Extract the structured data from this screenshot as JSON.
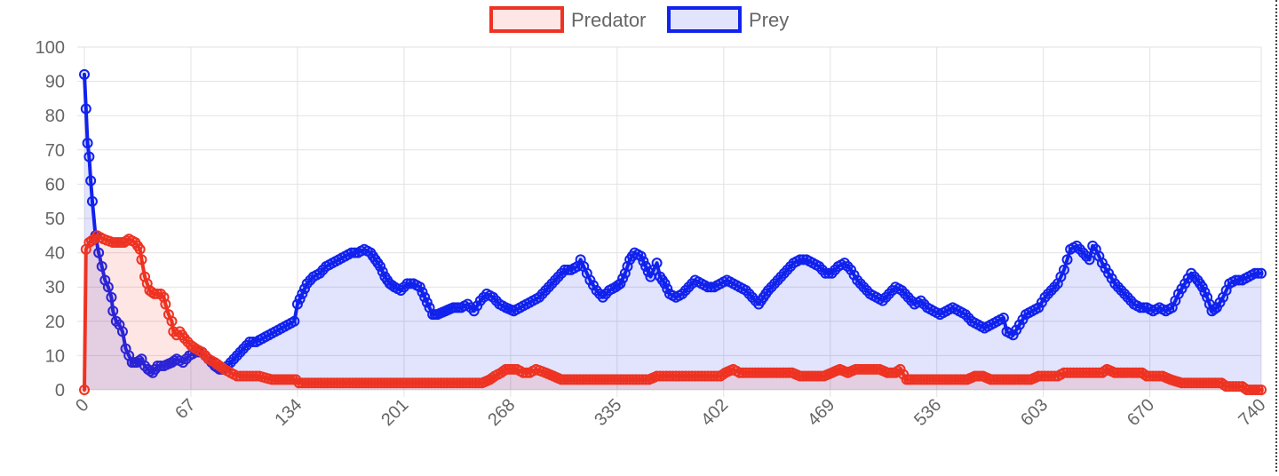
{
  "chart_data": {
    "type": "line",
    "title": "",
    "xlabel": "",
    "ylabel": "",
    "legend_position": "top",
    "grid": true,
    "xlim": [
      0,
      740
    ],
    "ylim": [
      0,
      100
    ],
    "x_ticks": [
      "0",
      "67",
      "134",
      "201",
      "268",
      "335",
      "402",
      "469",
      "536",
      "603",
      "670",
      "740"
    ],
    "y_ticks": [
      "0",
      "10",
      "20",
      "30",
      "40",
      "50",
      "60",
      "70",
      "80",
      "90",
      "100"
    ],
    "series": [
      {
        "name": "Predator",
        "color": "#ee3322",
        "fill": "rgba(238,51,34,0.12)",
        "points": [
          [
            0,
            0
          ],
          [
            1,
            41
          ],
          [
            3,
            43
          ],
          [
            6,
            44
          ],
          [
            8,
            45
          ],
          [
            12,
            44
          ],
          [
            18,
            43
          ],
          [
            25,
            43
          ],
          [
            28,
            44
          ],
          [
            32,
            43
          ],
          [
            35,
            41
          ],
          [
            36,
            38
          ],
          [
            38,
            33
          ],
          [
            41,
            29
          ],
          [
            44,
            28
          ],
          [
            48,
            28
          ],
          [
            50,
            27
          ],
          [
            51,
            25
          ],
          [
            53,
            22
          ],
          [
            55,
            20
          ],
          [
            56,
            17
          ],
          [
            58,
            16
          ],
          [
            60,
            17
          ],
          [
            63,
            15
          ],
          [
            67,
            13
          ],
          [
            70,
            12
          ],
          [
            74,
            11
          ],
          [
            78,
            9
          ],
          [
            82,
            8
          ],
          [
            85,
            7
          ],
          [
            88,
            6
          ],
          [
            92,
            5
          ],
          [
            96,
            4
          ],
          [
            110,
            4
          ],
          [
            118,
            3
          ],
          [
            133,
            3
          ],
          [
            135,
            2
          ],
          [
            250,
            2
          ],
          [
            255,
            3
          ],
          [
            258,
            4
          ],
          [
            262,
            5
          ],
          [
            265,
            6
          ],
          [
            272,
            6
          ],
          [
            276,
            5
          ],
          [
            280,
            5
          ],
          [
            284,
            6
          ],
          [
            290,
            5
          ],
          [
            295,
            4
          ],
          [
            300,
            3
          ],
          [
            335,
            3
          ],
          [
            355,
            3
          ],
          [
            360,
            4
          ],
          [
            400,
            4
          ],
          [
            403,
            5
          ],
          [
            408,
            6
          ],
          [
            412,
            5
          ],
          [
            420,
            5
          ],
          [
            445,
            5
          ],
          [
            450,
            4
          ],
          [
            465,
            4
          ],
          [
            470,
            5
          ],
          [
            475,
            6
          ],
          [
            480,
            5
          ],
          [
            485,
            6
          ],
          [
            500,
            6
          ],
          [
            505,
            5
          ],
          [
            510,
            5
          ],
          [
            513,
            6
          ],
          [
            517,
            3
          ],
          [
            520,
            3
          ],
          [
            555,
            3
          ],
          [
            560,
            4
          ],
          [
            565,
            4
          ],
          [
            570,
            3
          ],
          [
            595,
            3
          ],
          [
            600,
            4
          ],
          [
            612,
            4
          ],
          [
            616,
            5
          ],
          [
            640,
            5
          ],
          [
            643,
            6
          ],
          [
            648,
            5
          ],
          [
            665,
            5
          ],
          [
            668,
            4
          ],
          [
            678,
            4
          ],
          [
            683,
            3
          ],
          [
            690,
            2
          ],
          [
            715,
            2
          ],
          [
            718,
            1
          ],
          [
            728,
            1
          ],
          [
            731,
            0
          ],
          [
            740,
            0
          ]
        ]
      },
      {
        "name": "Prey",
        "color": "#1122ee",
        "fill": "rgba(17,34,238,0.12)",
        "points": [
          [
            0,
            92
          ],
          [
            1,
            82
          ],
          [
            2,
            72
          ],
          [
            3,
            68
          ],
          [
            4,
            61
          ],
          [
            5,
            55
          ],
          [
            7,
            45
          ],
          [
            9,
            40
          ],
          [
            11,
            36
          ],
          [
            13,
            32
          ],
          [
            15,
            30
          ],
          [
            17,
            27
          ],
          [
            18,
            23
          ],
          [
            20,
            20
          ],
          [
            22,
            19
          ],
          [
            24,
            17
          ],
          [
            26,
            12
          ],
          [
            28,
            10
          ],
          [
            30,
            8
          ],
          [
            33,
            8
          ],
          [
            36,
            9
          ],
          [
            38,
            7
          ],
          [
            40,
            6
          ],
          [
            43,
            5
          ],
          [
            46,
            7
          ],
          [
            50,
            7
          ],
          [
            55,
            8
          ],
          [
            58,
            9
          ],
          [
            62,
            8
          ],
          [
            66,
            10
          ],
          [
            70,
            11
          ],
          [
            74,
            11
          ],
          [
            78,
            9
          ],
          [
            82,
            7
          ],
          [
            85,
            6
          ],
          [
            88,
            6
          ],
          [
            92,
            8
          ],
          [
            96,
            10
          ],
          [
            100,
            12
          ],
          [
            104,
            14
          ],
          [
            108,
            14
          ],
          [
            112,
            15
          ],
          [
            116,
            16
          ],
          [
            120,
            17
          ],
          [
            124,
            18
          ],
          [
            128,
            19
          ],
          [
            132,
            20
          ],
          [
            134,
            25
          ],
          [
            137,
            28
          ],
          [
            140,
            31
          ],
          [
            144,
            33
          ],
          [
            148,
            34
          ],
          [
            152,
            36
          ],
          [
            156,
            37
          ],
          [
            160,
            38
          ],
          [
            164,
            39
          ],
          [
            168,
            40
          ],
          [
            172,
            40
          ],
          [
            176,
            41
          ],
          [
            180,
            40
          ],
          [
            183,
            38
          ],
          [
            186,
            36
          ],
          [
            189,
            33
          ],
          [
            192,
            31
          ],
          [
            195,
            30
          ],
          [
            199,
            29
          ],
          [
            203,
            31
          ],
          [
            207,
            31
          ],
          [
            211,
            30
          ],
          [
            214,
            27
          ],
          [
            217,
            24
          ],
          [
            219,
            22
          ],
          [
            222,
            22
          ],
          [
            227,
            23
          ],
          [
            232,
            24
          ],
          [
            237,
            24
          ],
          [
            241,
            25
          ],
          [
            245,
            23
          ],
          [
            249,
            26
          ],
          [
            253,
            28
          ],
          [
            257,
            27
          ],
          [
            261,
            25
          ],
          [
            265,
            24
          ],
          [
            270,
            23
          ],
          [
            274,
            24
          ],
          [
            278,
            25
          ],
          [
            282,
            26
          ],
          [
            286,
            27
          ],
          [
            290,
            29
          ],
          [
            294,
            31
          ],
          [
            298,
            33
          ],
          [
            302,
            35
          ],
          [
            306,
            35
          ],
          [
            310,
            36
          ],
          [
            312,
            38
          ],
          [
            314,
            36
          ],
          [
            318,
            32
          ],
          [
            322,
            29
          ],
          [
            326,
            27
          ],
          [
            330,
            29
          ],
          [
            334,
            30
          ],
          [
            337,
            31
          ],
          [
            340,
            34
          ],
          [
            343,
            38
          ],
          [
            346,
            40
          ],
          [
            350,
            39
          ],
          [
            353,
            36
          ],
          [
            356,
            33
          ],
          [
            358,
            35
          ],
          [
            360,
            37
          ],
          [
            362,
            33
          ],
          [
            365,
            31
          ],
          [
            368,
            28
          ],
          [
            372,
            27
          ],
          [
            376,
            28
          ],
          [
            380,
            30
          ],
          [
            384,
            32
          ],
          [
            388,
            31
          ],
          [
            392,
            30
          ],
          [
            396,
            30
          ],
          [
            400,
            31
          ],
          [
            404,
            32
          ],
          [
            408,
            31
          ],
          [
            412,
            30
          ],
          [
            416,
            29
          ],
          [
            420,
            27
          ],
          [
            424,
            25
          ],
          [
            427,
            27
          ],
          [
            430,
            29
          ],
          [
            434,
            31
          ],
          [
            438,
            33
          ],
          [
            442,
            35
          ],
          [
            446,
            37
          ],
          [
            450,
            38
          ],
          [
            454,
            38
          ],
          [
            458,
            37
          ],
          [
            462,
            36
          ],
          [
            466,
            34
          ],
          [
            470,
            34
          ],
          [
            474,
            36
          ],
          [
            478,
            37
          ],
          [
            482,
            35
          ],
          [
            486,
            32
          ],
          [
            490,
            30
          ],
          [
            494,
            28
          ],
          [
            498,
            27
          ],
          [
            502,
            26
          ],
          [
            506,
            28
          ],
          [
            510,
            30
          ],
          [
            514,
            29
          ],
          [
            518,
            27
          ],
          [
            522,
            25
          ],
          [
            526,
            26
          ],
          [
            530,
            24
          ],
          [
            534,
            23
          ],
          [
            538,
            22
          ],
          [
            542,
            23
          ],
          [
            546,
            24
          ],
          [
            550,
            23
          ],
          [
            554,
            22
          ],
          [
            558,
            20
          ],
          [
            562,
            19
          ],
          [
            566,
            18
          ],
          [
            570,
            19
          ],
          [
            574,
            20
          ],
          [
            578,
            21
          ],
          [
            580,
            17
          ],
          [
            584,
            16
          ],
          [
            588,
            19
          ],
          [
            592,
            22
          ],
          [
            596,
            23
          ],
          [
            600,
            24
          ],
          [
            604,
            27
          ],
          [
            608,
            29
          ],
          [
            612,
            31
          ],
          [
            616,
            35
          ],
          [
            618,
            38
          ],
          [
            620,
            41
          ],
          [
            624,
            42
          ],
          [
            628,
            40
          ],
          [
            632,
            38
          ],
          [
            634,
            42
          ],
          [
            636,
            41
          ],
          [
            640,
            37
          ],
          [
            644,
            34
          ],
          [
            648,
            31
          ],
          [
            652,
            29
          ],
          [
            656,
            27
          ],
          [
            660,
            25
          ],
          [
            664,
            24
          ],
          [
            668,
            24
          ],
          [
            672,
            23
          ],
          [
            676,
            24
          ],
          [
            680,
            23
          ],
          [
            684,
            24
          ],
          [
            688,
            28
          ],
          [
            692,
            31
          ],
          [
            696,
            34
          ],
          [
            700,
            32
          ],
          [
            703,
            30
          ],
          [
            706,
            27
          ],
          [
            709,
            23
          ],
          [
            712,
            24
          ],
          [
            716,
            27
          ],
          [
            720,
            31
          ],
          [
            724,
            32
          ],
          [
            728,
            32
          ],
          [
            732,
            33
          ],
          [
            736,
            34
          ],
          [
            740,
            34
          ]
        ]
      }
    ]
  }
}
